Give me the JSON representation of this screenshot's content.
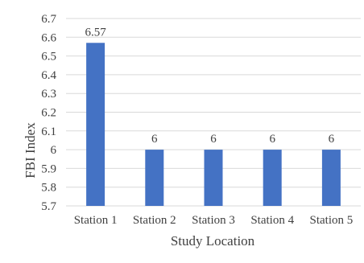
{
  "chart_data": {
    "type": "bar",
    "categories": [
      "Station 1",
      "Station 2",
      "Station 3",
      "Station 4",
      "Station 5"
    ],
    "values": [
      6.57,
      6,
      6,
      6,
      6
    ],
    "data_labels": [
      "6.57",
      "6",
      "6",
      "6",
      "6"
    ],
    "xlabel": "Study Location",
    "ylabel": "FBI Index",
    "ylim": [
      5.7,
      6.7
    ],
    "yticks": [
      5.7,
      5.8,
      5.9,
      6,
      6.1,
      6.2,
      6.3,
      6.4,
      6.5,
      6.6,
      6.7
    ],
    "ytick_labels": [
      "5.7",
      "5.8",
      "5.9",
      "6",
      "6.1",
      "6.2",
      "6.3",
      "6.4",
      "6.5",
      "6.6",
      "6.7"
    ],
    "grid": true,
    "legend": "none",
    "bar_color": "#4472C4",
    "grid_color": "#d9d9d9"
  }
}
